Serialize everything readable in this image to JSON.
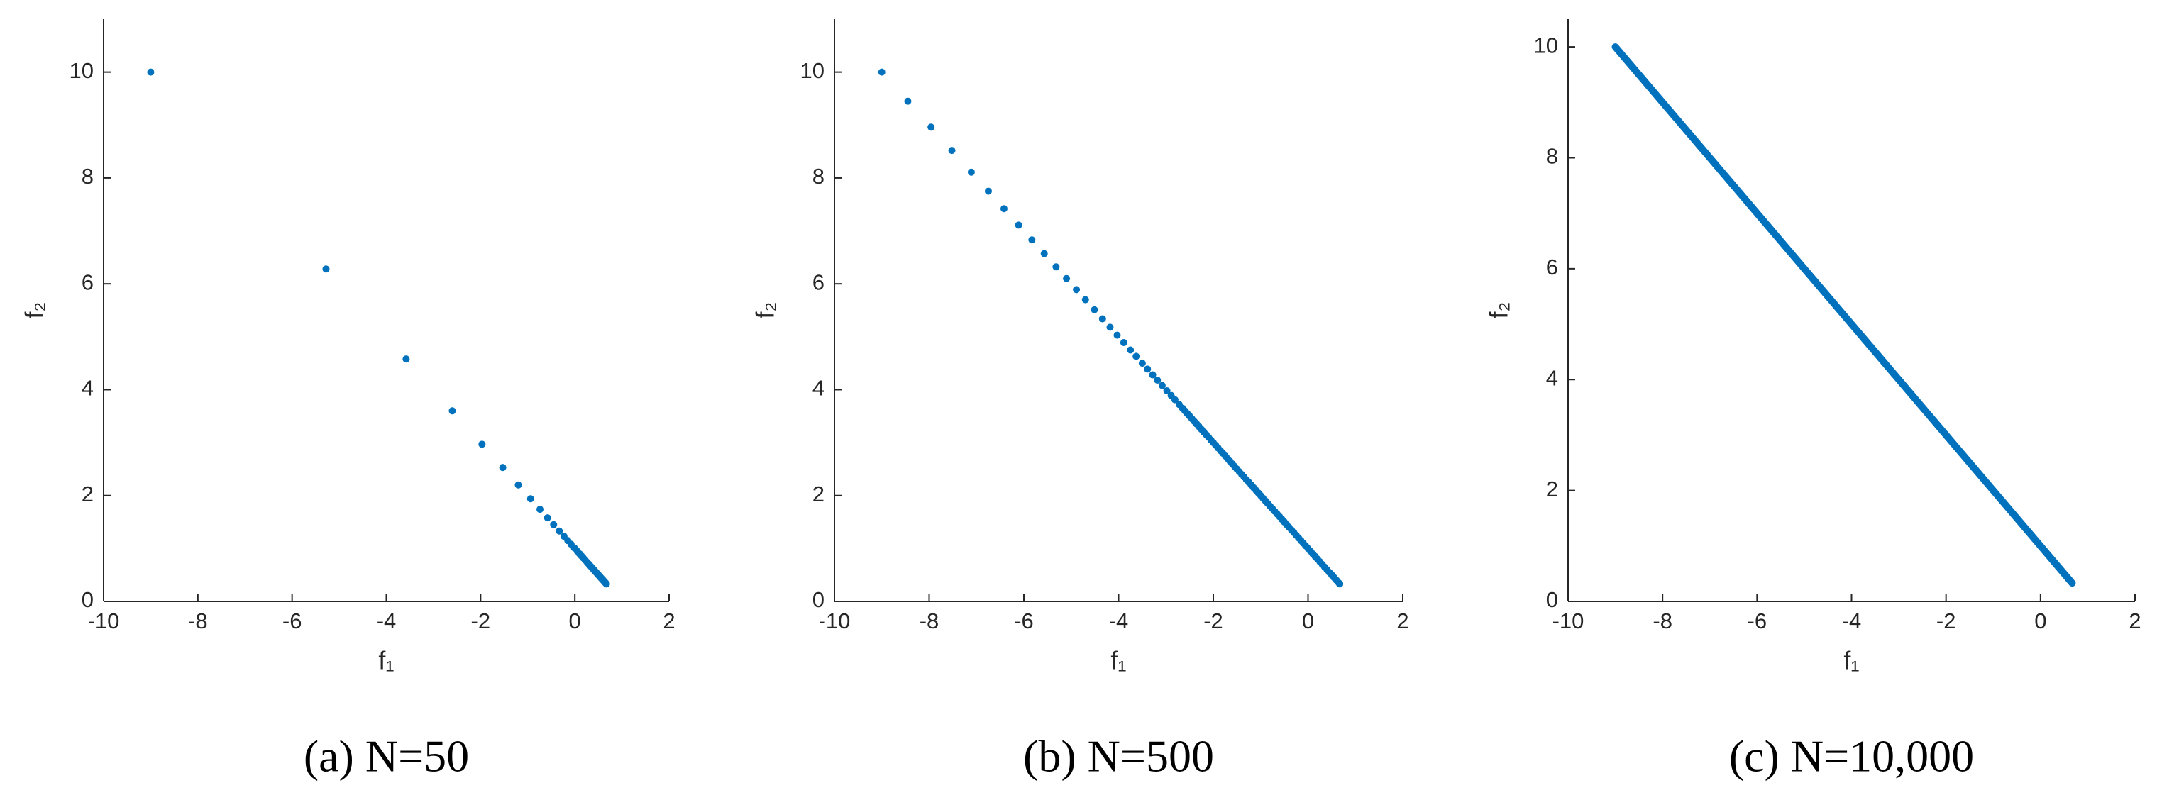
{
  "chart_data": [
    {
      "type": "scatter",
      "caption": "(a) N=50",
      "xlabel": "f₁",
      "ylabel": "f₂",
      "color": "#0072bd",
      "xlim": [
        -10,
        2
      ],
      "ylim": [
        0,
        11
      ],
      "xticks": [
        -10,
        -8,
        -6,
        -4,
        -2,
        0,
        2
      ],
      "yticks": [
        0,
        2,
        4,
        6,
        8,
        10
      ],
      "x": [
        -9,
        -5.28,
        -3.58,
        -2.6,
        -1.97,
        -1.53,
        -1.2,
        -0.94,
        -0.74,
        -0.58,
        -0.45,
        -0.33,
        -0.23,
        -0.15,
        -0.08,
        -0.01,
        0.05,
        0.1,
        0.14,
        0.18,
        0.22,
        0.26,
        0.29,
        0.32,
        0.34,
        0.37,
        0.39,
        0.41,
        0.43,
        0.45,
        0.47,
        0.48,
        0.5,
        0.51,
        0.53,
        0.54,
        0.55,
        0.56,
        0.57,
        0.59,
        0.6,
        0.6,
        0.61,
        0.62,
        0.63,
        0.64,
        0.65,
        0.65,
        0.66,
        0.67
      ],
      "y": [
        10,
        6.28,
        4.58,
        3.6,
        2.97,
        2.53,
        2.2,
        1.94,
        1.74,
        1.58,
        1.45,
        1.33,
        1.23,
        1.15,
        1.08,
        1.01,
        0.95,
        0.9,
        0.86,
        0.82,
        0.78,
        0.74,
        0.71,
        0.68,
        0.66,
        0.63,
        0.61,
        0.59,
        0.57,
        0.55,
        0.53,
        0.52,
        0.5,
        0.49,
        0.47,
        0.46,
        0.45,
        0.44,
        0.43,
        0.41,
        0.4,
        0.4,
        0.39,
        0.38,
        0.37,
        0.36,
        0.35,
        0.35,
        0.34,
        0.33
      ]
    },
    {
      "type": "scatter",
      "caption": "(b) N=500",
      "xlabel": "f₁",
      "ylabel": "f₂",
      "color": "#0072bd",
      "xlim": [
        -10,
        2
      ],
      "ylim": [
        0,
        11
      ],
      "xticks": [
        -10,
        -8,
        -6,
        -4,
        -2,
        0,
        2
      ],
      "yticks": [
        0,
        2,
        4,
        6,
        8,
        10
      ],
      "x": [
        -9,
        -8.45,
        -7.96,
        -7.52,
        -7.11,
        -6.75,
        -6.42,
        -6.11,
        -5.83,
        -5.57,
        -5.32,
        -5.1,
        -4.89,
        -4.7,
        -4.51,
        -4.34,
        -4.18,
        -4.03,
        -3.89,
        -3.75,
        -3.63,
        -3.5,
        -3.39,
        -3.28,
        -3.18,
        -3.08,
        -2.98,
        -2.89,
        -2.81,
        -2.72,
        -2.65,
        -2.6,
        -2.55,
        -2.5,
        -2.45,
        -2.4,
        -2.35,
        -2.3,
        -2.25,
        -2.2,
        -2.15,
        -2.1,
        -2.05,
        -2,
        -1.95,
        -1.9,
        -1.85,
        -1.8,
        -1.75,
        -1.7,
        -1.65,
        -1.6,
        -1.55,
        -1.5,
        -1.45,
        -1.4,
        -1.35,
        -1.3,
        -1.25,
        -1.2,
        -1.15,
        -1.1,
        -1.05,
        -1,
        -0.95,
        -0.9,
        -0.85,
        -0.8,
        -0.75,
        -0.7,
        -0.65,
        -0.6,
        -0.55,
        -0.5,
        -0.45,
        -0.4,
        -0.35,
        -0.3,
        -0.25,
        -0.2,
        -0.15,
        -0.1,
        -0.05,
        0,
        0.05,
        0.1,
        0.15,
        0.2,
        0.25,
        0.3,
        0.35,
        0.4,
        0.45,
        0.5,
        0.55,
        0.6,
        0.65,
        0.67
      ],
      "y": [
        10,
        9.45,
        8.96,
        8.52,
        8.11,
        7.75,
        7.42,
        7.11,
        6.83,
        6.57,
        6.32,
        6.1,
        5.89,
        5.7,
        5.51,
        5.34,
        5.18,
        5.03,
        4.89,
        4.75,
        4.63,
        4.5,
        4.39,
        4.28,
        4.18,
        4.08,
        3.98,
        3.89,
        3.81,
        3.72,
        3.65,
        3.6,
        3.55,
        3.5,
        3.45,
        3.4,
        3.35,
        3.3,
        3.25,
        3.2,
        3.15,
        3.1,
        3.05,
        3,
        2.95,
        2.9,
        2.85,
        2.8,
        2.75,
        2.7,
        2.65,
        2.6,
        2.55,
        2.5,
        2.45,
        2.4,
        2.35,
        2.3,
        2.25,
        2.2,
        2.15,
        2.1,
        2.05,
        2,
        1.95,
        1.9,
        1.85,
        1.8,
        1.75,
        1.7,
        1.65,
        1.6,
        1.55,
        1.5,
        1.45,
        1.4,
        1.35,
        1.3,
        1.25,
        1.2,
        1.15,
        1.1,
        1.05,
        1,
        0.95,
        0.9,
        0.85,
        0.8,
        0.75,
        0.7,
        0.65,
        0.6,
        0.55,
        0.5,
        0.45,
        0.4,
        0.35,
        0.33
      ]
    },
    {
      "type": "line",
      "caption": "(c) N=10,000",
      "xlabel": "f₁",
      "ylabel": "f₂",
      "color": "#0072bd",
      "xlim": [
        -10,
        2
      ],
      "ylim": [
        0,
        10.5
      ],
      "xticks": [
        -10,
        -8,
        -6,
        -4,
        -2,
        0,
        2
      ],
      "yticks": [
        0,
        2,
        4,
        6,
        8,
        10
      ],
      "x": [
        -9,
        0.67
      ],
      "y": [
        10,
        0.33
      ]
    }
  ]
}
